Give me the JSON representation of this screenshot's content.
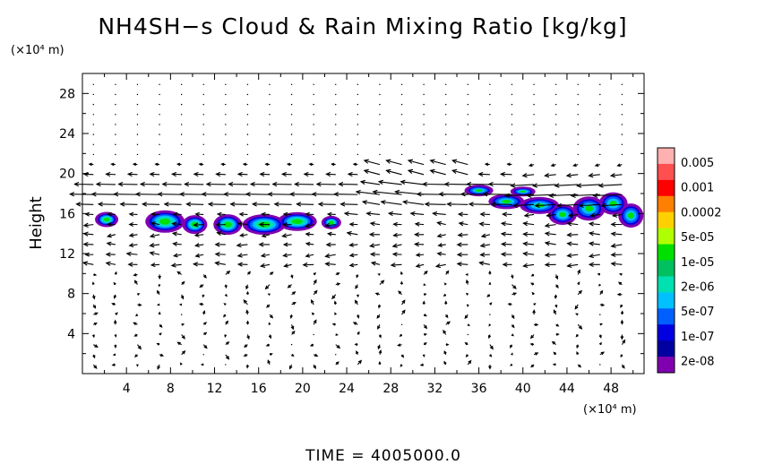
{
  "chart_data": {
    "type": "heatmap",
    "title": "NH4SH−s Cloud & Rain Mixing Ratio [kg/kg]",
    "ylabel": "Height",
    "y_unit": "(×10⁴ m)",
    "x_unit": "(×10⁴ m)",
    "xlim": [
      0,
      51
    ],
    "ylim": [
      0,
      30
    ],
    "x_ticks": [
      4,
      8,
      12,
      16,
      20,
      24,
      28,
      32,
      36,
      40,
      44,
      48
    ],
    "y_ticks": [
      4,
      8,
      12,
      16,
      20,
      24,
      28
    ],
    "colorbar": {
      "labels": [
        "0.005",
        "0.001",
        "0.0002",
        "5e-05",
        "1e-05",
        "2e-06",
        "5e-07",
        "1e-07",
        "2e-08"
      ],
      "colors": [
        "#ffb0b0",
        "#ff5050",
        "#ff0000",
        "#ff8000",
        "#ffd000",
        "#b0ff00",
        "#00e000",
        "#00c060",
        "#00e0b0",
        "#00c0ff",
        "#0060ff",
        "#0000e0",
        "#0000a0",
        "#8000b0"
      ]
    },
    "footer": "TIME = 4005000.0"
  }
}
